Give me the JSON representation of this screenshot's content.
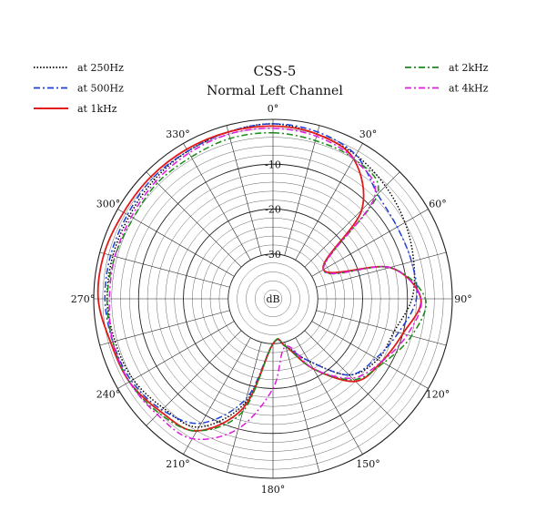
{
  "chart_data": {
    "type": "polar",
    "title": "CSS-5",
    "subtitle": "Normal Left Channel",
    "radial_unit": "dB",
    "r_range": [
      -40,
      0
    ],
    "r_ticks": [
      {
        "value": -10,
        "label": "-10"
      },
      {
        "value": -20,
        "label": "-20"
      },
      {
        "value": -30,
        "label": "-30"
      }
    ],
    "angle_ticks": [
      {
        "angle": 0,
        "label": "0°"
      },
      {
        "angle": 30,
        "label": "30°"
      },
      {
        "angle": 60,
        "label": "60°"
      },
      {
        "angle": 90,
        "label": "90°"
      },
      {
        "angle": 120,
        "label": "120°"
      },
      {
        "angle": 150,
        "label": "150°"
      },
      {
        "angle": 180,
        "label": "180°"
      },
      {
        "angle": 210,
        "label": "210°"
      },
      {
        "angle": 240,
        "label": "240°"
      },
      {
        "angle": 270,
        "label": "270°"
      },
      {
        "angle": 300,
        "label": "300°"
      },
      {
        "angle": 330,
        "label": "330°"
      }
    ],
    "grid": true,
    "legend_left": [
      "250",
      "500",
      "1k"
    ],
    "legend_right": [
      "2k",
      "4k"
    ],
    "angles": [
      0,
      15,
      30,
      45,
      60,
      75,
      90,
      105,
      120,
      135,
      150,
      165,
      180,
      195,
      210,
      225,
      240,
      255,
      270,
      285,
      300,
      315,
      330,
      345,
      360
    ],
    "series": [
      {
        "id": "250",
        "name": "at 250Hz",
        "color": "#000000",
        "dash": "1.5,2",
        "values": [
          -1,
          -2,
          -3,
          -4.5,
          -6,
          -7.5,
          -9,
          -12,
          -13,
          -16,
          -24,
          -29,
          -30,
          -16,
          -7,
          -5.5,
          -4,
          -3.5,
          -3,
          -3,
          -3,
          -2.5,
          -2,
          -1.5,
          -1
        ]
      },
      {
        "id": "500",
        "name": "at 500Hz",
        "color": "#1f3fd6",
        "dash": "7,3,2,3",
        "values": [
          -1,
          -1.5,
          -3,
          -7,
          -8,
          -8,
          -8,
          -11,
          -13.5,
          -16,
          -24,
          -29,
          -30,
          -17,
          -8,
          -5,
          -3.5,
          -3,
          -2.5,
          -2.5,
          -2.5,
          -2,
          -2,
          -1.5,
          -1
        ]
      },
      {
        "id": "1k",
        "name": "at 1kHz",
        "color": "#e11a1a",
        "dash": "",
        "values": [
          -1.5,
          -2,
          -4,
          -12,
          -27,
          -13,
          -7,
          -10,
          -12,
          -14,
          -22,
          -29,
          -30,
          -15,
          -6,
          -4.5,
          -3,
          -2.5,
          -1,
          -1,
          -1.5,
          -1.5,
          -1.5,
          -1.5,
          -1.5
        ]
      },
      {
        "id": "2k",
        "name": "at 2kHz",
        "color": "#1a8a1a",
        "dash": "7,3,2,3",
        "values": [
          -3,
          -3.5,
          -4,
          -7,
          -27,
          -13,
          -6,
          -8,
          -11.5,
          -14.5,
          -22,
          -29,
          -30,
          -14,
          -6,
          -4,
          -3,
          -3,
          -3,
          -3.5,
          -4,
          -3.5,
          -3.5,
          -3,
          -3
        ]
      },
      {
        "id": "4k",
        "name": "at 4kHz",
        "color": "#e01ae0",
        "dash": "7,3,2,3",
        "values": [
          -2,
          -2.5,
          -4,
          -8,
          -27,
          -13,
          -7,
          -9,
          -12,
          -15,
          -22,
          -29,
          -20,
          -10,
          -4,
          -3.5,
          -3,
          -3,
          -3.5,
          -3.5,
          -3.5,
          -3,
          -2.5,
          -2,
          -2
        ]
      }
    ]
  }
}
